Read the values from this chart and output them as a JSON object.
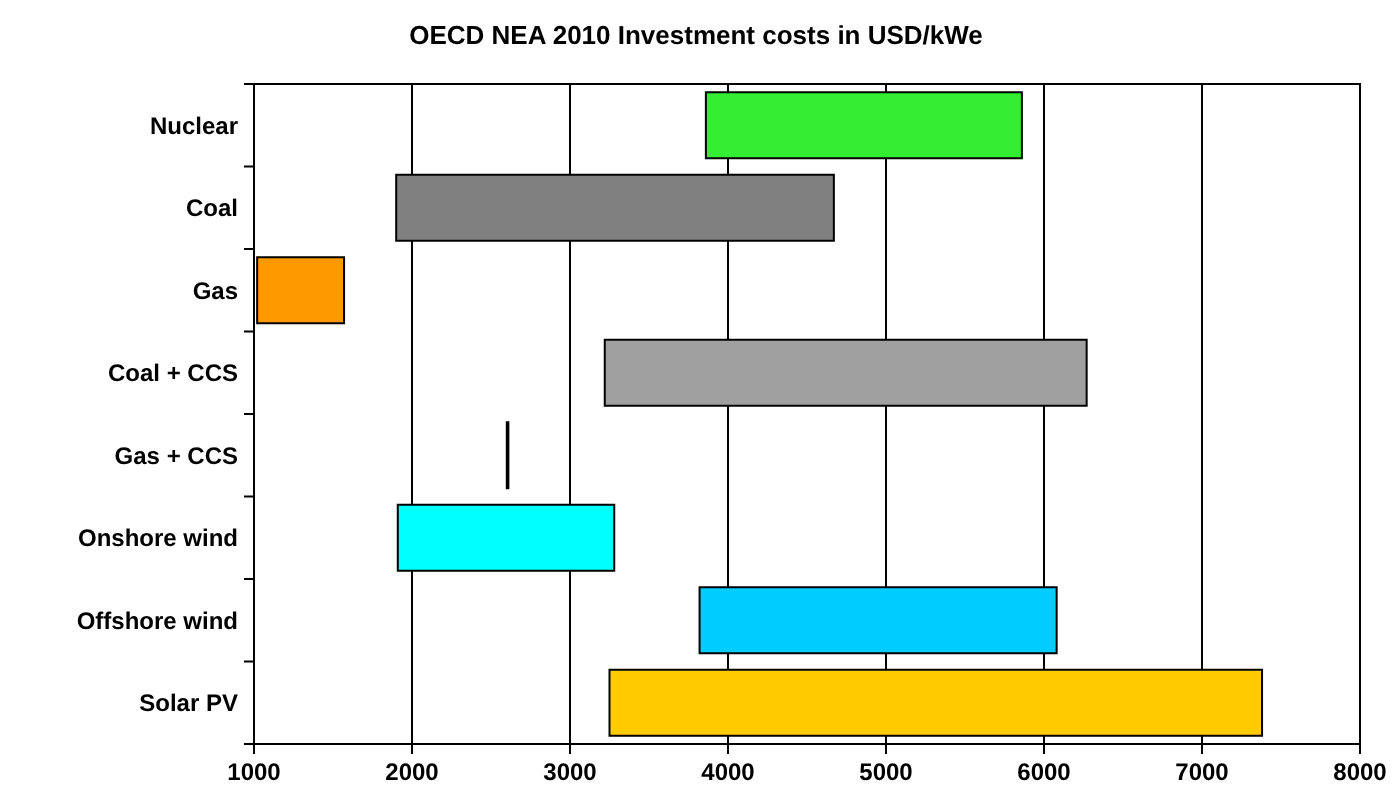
{
  "chart_data": {
    "type": "bar",
    "orientation": "horizontal",
    "title": "OECD NEA 2010 Investment costs in USD/kWe",
    "categories": [
      "Nuclear",
      "Coal",
      "Gas",
      "Coal + CCS",
      "Gas + CCS",
      "Onshore wind",
      "Offshore wind",
      "Solar PV"
    ],
    "base": [
      3860,
      1900,
      1020,
      3220,
      2600,
      1910,
      3820,
      3250
    ],
    "values": [
      2000,
      2770,
      550,
      3050,
      10,
      1370,
      2260,
      4130
    ],
    "colors": [
      "#33ee33",
      "#808080",
      "#ff9900",
      "#a0a0a0",
      "#000000",
      "#00ffff",
      "#00ccff",
      "#ffcc00"
    ],
    "xlim": [
      1000,
      8000
    ],
    "xticks": [
      1000,
      2000,
      3000,
      4000,
      5000,
      6000,
      7000,
      8000
    ],
    "grid": "x"
  }
}
